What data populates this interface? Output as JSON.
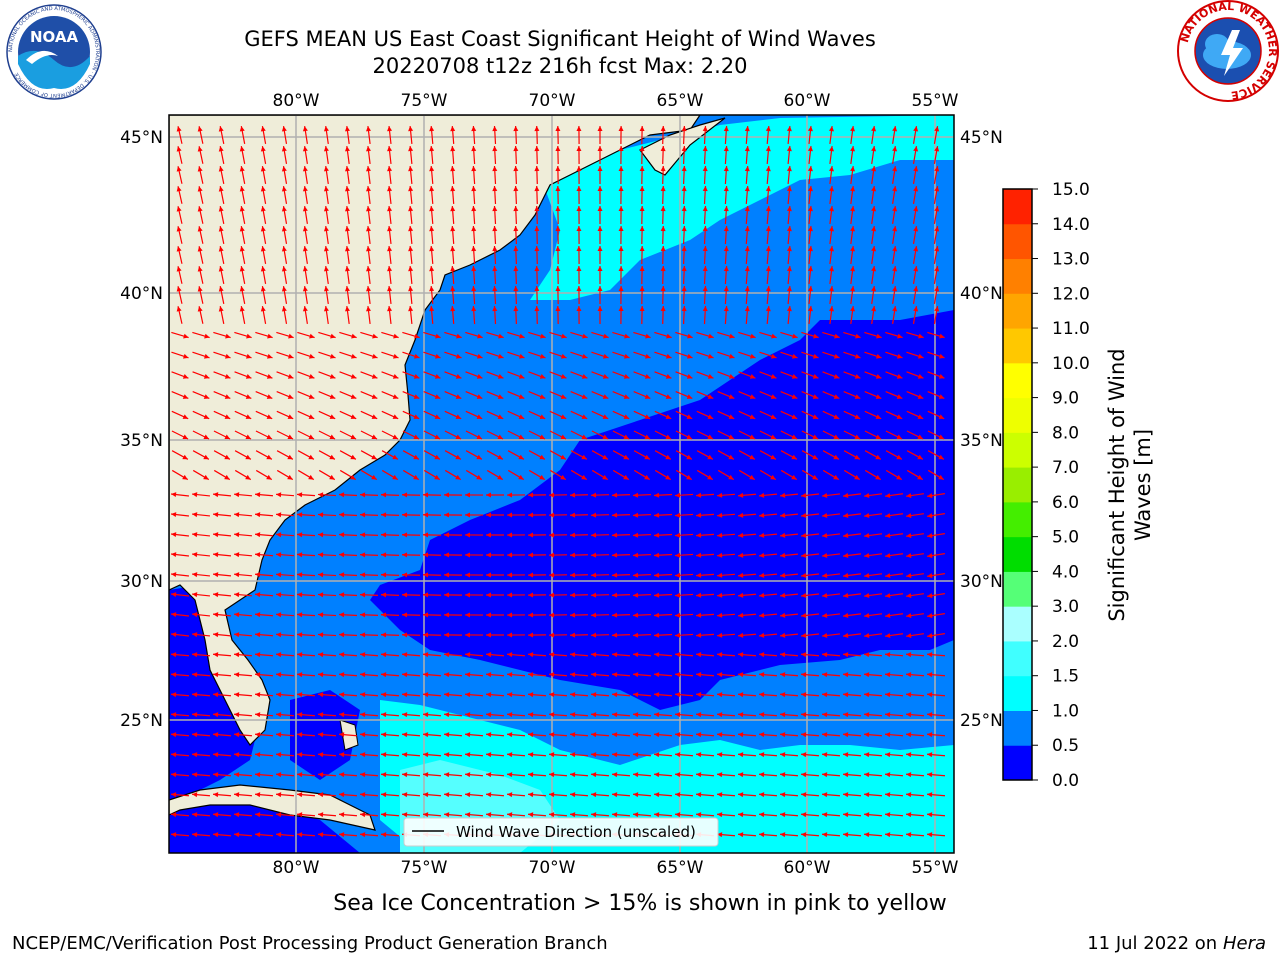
{
  "title": {
    "line1": "GEFS MEAN US East Coast Significant Height of Wind Waves",
    "line2": "20220708 t12z 216h fcst   Max: 2.20"
  },
  "logos": {
    "noaa": {
      "text": "NOAA",
      "ring": "NATIONAL OCEANIC AND ATMOSPHERIC ADMINISTRATION · U.S. DEPARTMENT OF COMMERCE"
    },
    "nws": {
      "ring": "NATIONAL WEATHER SERVICE"
    }
  },
  "map": {
    "lon_ticks": [
      "80°W",
      "75°W",
      "70°W",
      "65°W",
      "60°W",
      "55°W"
    ],
    "lat_ticks": [
      "45°N",
      "40°N",
      "35°N",
      "30°N",
      "25°N"
    ],
    "legend_label": "Wind Wave Direction (unscaled)",
    "colors": {
      "land": "#efedd9",
      "coast": "#000000",
      "grid": "#b0b0b0",
      "arrow": "#ff0000"
    }
  },
  "colorbar": {
    "label_line1": "Significant Height of Wind",
    "label_line2": "Waves [m]",
    "ticks": [
      "0.0",
      "0.5",
      "1.0",
      "1.5",
      "2.0",
      "3.0",
      "4.0",
      "5.0",
      "6.0",
      "7.0",
      "8.0",
      "9.0",
      "10.0",
      "11.0",
      "12.0",
      "13.0",
      "14.0",
      "15.0"
    ],
    "colors": [
      "#0000ff",
      "#0080ff",
      "#00ffff",
      "#40ffff",
      "#aaffff",
      "#55ff77",
      "#00dd00",
      "#44ee00",
      "#99ee00",
      "#ccff00",
      "#eeff00",
      "#ffff00",
      "#ffc800",
      "#ffa500",
      "#ff8000",
      "#ff5500",
      "#ff2200"
    ]
  },
  "subtitle": "Sea Ice Concentration > 15% is shown in pink to yellow",
  "footer": {
    "left": "NCEP/EMC/Verification Post Processing Product Generation Branch",
    "right_prefix": "11 Jul 2022 on ",
    "right_host": "Hera"
  }
}
